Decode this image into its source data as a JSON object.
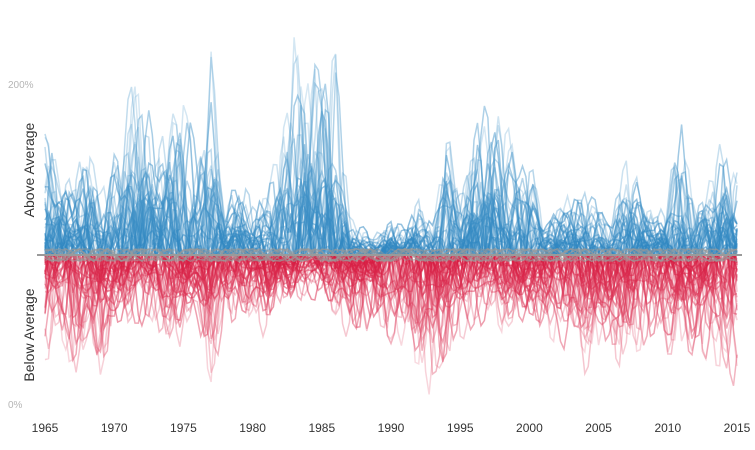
{
  "chart_data": {
    "type": "line",
    "title": "",
    "xlabel": "",
    "ylabel": "",
    "xlim": [
      1965,
      2015
    ],
    "ylim": [
      0,
      250
    ],
    "baseline": 100,
    "x_ticks": [
      1965,
      1970,
      1975,
      1980,
      1985,
      1990,
      1995,
      2000,
      2005,
      2010,
      2015
    ],
    "x_tick_labels": [
      "1965",
      "1970",
      "1975",
      "1980",
      "1985",
      "1990",
      "1995",
      "2000",
      "2005",
      "2010",
      "2015"
    ],
    "y_ticks": [
      0,
      200
    ],
    "y_tick_labels": [
      "0%",
      "200%"
    ],
    "above_label": "Above Average",
    "below_label": "Below Average",
    "grid": false,
    "legend": "none",
    "colors": {
      "above": "#2c85c0",
      "below": "#d6163d",
      "baseline": "#9a9a9a"
    },
    "series_count": 60,
    "envelope": {
      "x": [
        1965,
        1966,
        1967,
        1968,
        1969,
        1970,
        1971,
        1972,
        1973,
        1974,
        1975,
        1976,
        1977,
        1978,
        1979,
        1980,
        1981,
        1982,
        1983,
        1984,
        1985,
        1986,
        1987,
        1988,
        1989,
        1990,
        1991,
        1992,
        1993,
        1994,
        1995,
        1996,
        1997,
        1998,
        1999,
        2000,
        2001,
        2002,
        2003,
        2004,
        2005,
        2006,
        2007,
        2008,
        2009,
        2010,
        2011,
        2012,
        2013,
        2014,
        2015
      ],
      "max": [
        195,
        180,
        150,
        185,
        150,
        190,
        210,
        245,
        180,
        230,
        220,
        170,
        240,
        145,
        145,
        150,
        145,
        195,
        240,
        240,
        225,
        245,
        130,
        120,
        115,
        125,
        120,
        140,
        125,
        200,
        150,
        190,
        225,
        200,
        210,
        170,
        130,
        135,
        150,
        145,
        140,
        130,
        175,
        150,
        130,
        150,
        195,
        140,
        160,
        175,
        160
      ],
      "min": [
        20,
        40,
        10,
        25,
        10,
        35,
        50,
        50,
        40,
        25,
        45,
        45,
        5,
        35,
        45,
        55,
        45,
        60,
        65,
        70,
        65,
        55,
        45,
        45,
        45,
        35,
        20,
        15,
        5,
        25,
        35,
        45,
        55,
        40,
        45,
        50,
        35,
        25,
        15,
        15,
        20,
        20,
        20,
        25,
        30,
        30,
        30,
        25,
        25,
        10,
        5
      ]
    }
  }
}
